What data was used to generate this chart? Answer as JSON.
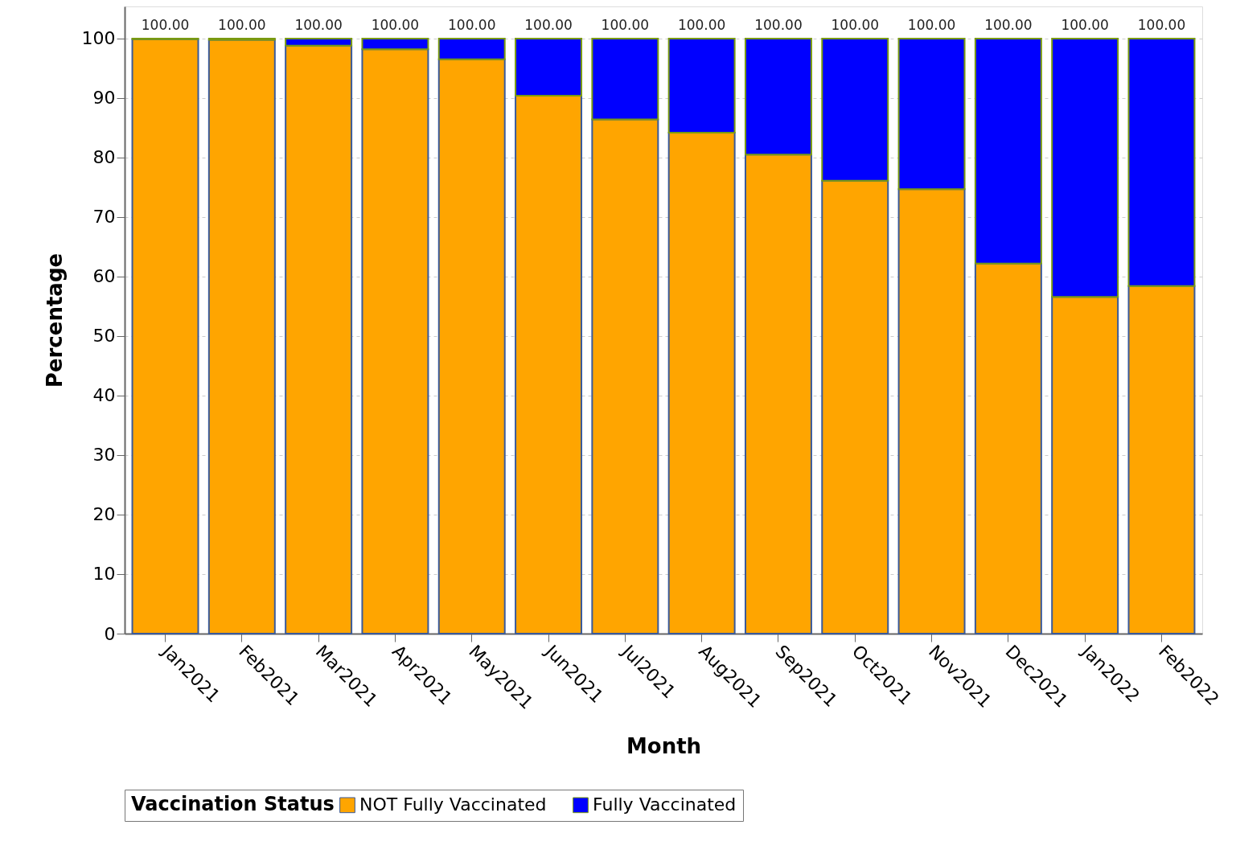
{
  "chart_data": {
    "type": "bar",
    "stacked": true,
    "xlabel": "Month",
    "ylabel": "Percentage",
    "legend_title": "Vaccination Status",
    "legend": "bottom",
    "grid": "y",
    "categories": [
      "Jan2021",
      "Feb2021",
      "Mar2021",
      "Apr2021",
      "May2021",
      "Jun2021",
      "Jul2021",
      "Aug2021",
      "Sep2021",
      "Oct2021",
      "Nov2021",
      "Dec2021",
      "Jan2022",
      "Feb2022"
    ],
    "series": [
      {
        "name": "NOT Fully Vaccinated",
        "color": "#ffa500",
        "values": [
          99.9,
          99.8,
          98.8,
          98.2,
          96.5,
          90.4,
          86.4,
          84.2,
          80.5,
          76.1,
          74.7,
          62.2,
          56.6,
          58.4
        ]
      },
      {
        "name": "Fully Vaccinated",
        "color": "#0000ff",
        "values": [
          0.1,
          0.2,
          1.2,
          1.8,
          3.5,
          9.6,
          13.6,
          15.8,
          19.5,
          23.9,
          25.3,
          37.8,
          43.4,
          41.6
        ]
      }
    ],
    "totals": [
      "100.00",
      "100.00",
      "100.00",
      "100.00",
      "100.00",
      "100.00",
      "100.00",
      "100.00",
      "100.00",
      "100.00",
      "100.00",
      "100.00",
      "100.00",
      "100.00"
    ],
    "ylim": [
      0,
      105.4
    ],
    "yticks": [
      0,
      10,
      20,
      30,
      40,
      50,
      60,
      70,
      80,
      90,
      100
    ]
  }
}
